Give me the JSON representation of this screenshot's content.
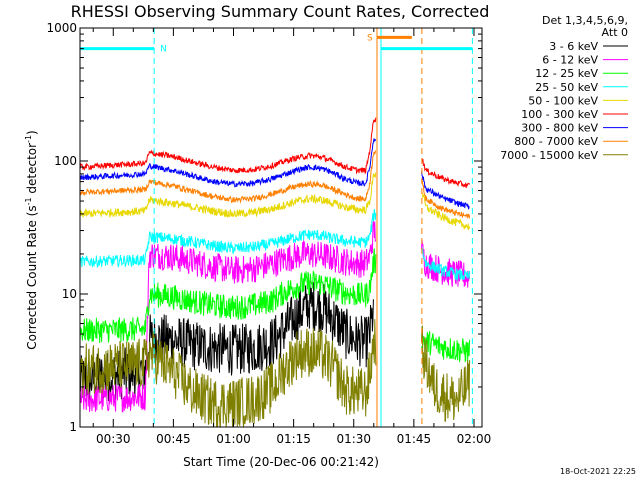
{
  "chart_data": {
    "type": "line",
    "title": "RHESSI Observing Summary Count Rates, Corrected",
    "xlabel": "Start Time (20-Dec-06 00:21:42)",
    "ylabel": "Corrected Count Rate (s",
    "ylabel_sup1": "-1",
    "ylabel_mid": " detector",
    "ylabel_sup2": "-1",
    "ylabel_end": ")",
    "x_ticks": [
      {
        "t": 30,
        "label": "00:30"
      },
      {
        "t": 45,
        "label": "00:45"
      },
      {
        "t": 60,
        "label": "01:00"
      },
      {
        "t": 75,
        "label": "01:15"
      },
      {
        "t": 90,
        "label": "01:30"
      },
      {
        "t": 105,
        "label": "01:45"
      },
      {
        "t": 120,
        "label": "02:00"
      }
    ],
    "xlim": [
      21.7,
      122
    ],
    "ylim": [
      1,
      1000
    ],
    "y_scale": "log",
    "y_ticks": [
      {
        "v": 1,
        "label": "1"
      },
      {
        "v": 10,
        "label": "10"
      },
      {
        "v": 100,
        "label": "100"
      },
      {
        "v": 1000,
        "label": "1000"
      }
    ],
    "legend": {
      "placement": "right",
      "header1": "Det 1,3,4,5,6,9,",
      "header2": "Att 0"
    },
    "series": [
      {
        "name": "3 - 6 keV",
        "color": "#000000",
        "points": [
          [
            21.7,
            2.2
          ],
          [
            38,
            2.7
          ],
          [
            39,
            4.6
          ],
          [
            45,
            4.5
          ],
          [
            50,
            4.1
          ],
          [
            55,
            3.9
          ],
          [
            60,
            3.8
          ],
          [
            65,
            3.9
          ],
          [
            70,
            4.4
          ],
          [
            73,
            5.5
          ],
          [
            76,
            7.0
          ],
          [
            79,
            8.4
          ],
          [
            82,
            8.0
          ],
          [
            85,
            6.5
          ],
          [
            88,
            5.0
          ],
          [
            91,
            4.5
          ],
          [
            93,
            4.3
          ],
          [
            94,
            5.0
          ],
          [
            95,
            8.0
          ]
        ]
      },
      {
        "name": "6 - 12 keV",
        "color": "#ff00ff",
        "points": [
          [
            21.7,
            1.6
          ],
          [
            38,
            1.7
          ],
          [
            39,
            20.0
          ],
          [
            45,
            19.0
          ],
          [
            50,
            17.5
          ],
          [
            55,
            16.0
          ],
          [
            60,
            15.0
          ],
          [
            65,
            15.5
          ],
          [
            70,
            17.0
          ],
          [
            73,
            18.5
          ],
          [
            76,
            19.5
          ],
          [
            79,
            20.0
          ],
          [
            82,
            19.5
          ],
          [
            85,
            18.5
          ],
          [
            88,
            17.5
          ],
          [
            91,
            17.0
          ],
          [
            93,
            17.0
          ],
          [
            94,
            19.0
          ],
          [
            95,
            30.0
          ],
          [
            107,
            21.0
          ],
          [
            108,
            17.0
          ],
          [
            112,
            15.0
          ],
          [
            116,
            14.0
          ],
          [
            119,
            13.5
          ]
        ]
      },
      {
        "name": "12 - 25 keV",
        "color": "#00ff00",
        "points": [
          [
            21.7,
            5.3
          ],
          [
            38,
            5.4
          ],
          [
            39,
            10.0
          ],
          [
            45,
            9.5
          ],
          [
            50,
            8.8
          ],
          [
            55,
            8.2
          ],
          [
            60,
            7.9
          ],
          [
            65,
            8.2
          ],
          [
            70,
            9.0
          ],
          [
            73,
            10.5
          ],
          [
            76,
            11.5
          ],
          [
            79,
            12.2
          ],
          [
            82,
            12.0
          ],
          [
            85,
            11.0
          ],
          [
            88,
            10.2
          ],
          [
            91,
            9.8
          ],
          [
            93,
            9.8
          ],
          [
            94,
            11.0
          ],
          [
            95,
            18.0
          ],
          [
            107,
            4.5
          ],
          [
            112,
            4.0
          ],
          [
            116,
            3.8
          ],
          [
            119,
            3.7
          ]
        ]
      },
      {
        "name": "25 - 50 keV",
        "color": "#00ffff",
        "points": [
          [
            21.7,
            17.5
          ],
          [
            38,
            18.0
          ],
          [
            39,
            27.0
          ],
          [
            45,
            26.0
          ],
          [
            50,
            24.5
          ],
          [
            55,
            23.0
          ],
          [
            60,
            22.0
          ],
          [
            65,
            22.5
          ],
          [
            70,
            24.0
          ],
          [
            73,
            25.5
          ],
          [
            76,
            27.0
          ],
          [
            79,
            28.0
          ],
          [
            82,
            27.5
          ],
          [
            85,
            26.0
          ],
          [
            88,
            25.0
          ],
          [
            91,
            24.5
          ],
          [
            93,
            24.5
          ],
          [
            94,
            27.0
          ],
          [
            95,
            40.0
          ],
          [
            107,
            22.0
          ],
          [
            108,
            17.0
          ],
          [
            112,
            15.0
          ],
          [
            116,
            14.0
          ],
          [
            119,
            13.5
          ]
        ]
      },
      {
        "name": "50 - 100 keV",
        "color": "#e8d800",
        "points": [
          [
            21.7,
            40.0
          ],
          [
            38,
            42.0
          ],
          [
            39,
            51.0
          ],
          [
            45,
            48.0
          ],
          [
            50,
            45.0
          ],
          [
            55,
            42.0
          ],
          [
            60,
            40.0
          ],
          [
            65,
            41.0
          ],
          [
            70,
            44.0
          ],
          [
            73,
            47.0
          ],
          [
            76,
            50.0
          ],
          [
            79,
            52.0
          ],
          [
            82,
            51.0
          ],
          [
            85,
            48.0
          ],
          [
            88,
            45.0
          ],
          [
            91,
            43.0
          ],
          [
            93,
            43.0
          ],
          [
            94,
            50.0
          ],
          [
            95,
            80.0
          ],
          [
            107,
            60.0
          ],
          [
            108,
            45.0
          ],
          [
            112,
            38.0
          ],
          [
            116,
            34.0
          ],
          [
            119,
            32.0
          ]
        ]
      },
      {
        "name": "100 - 300 keV",
        "color": "#ff0000",
        "points": [
          [
            21.7,
            90.0
          ],
          [
            38,
            96.0
          ],
          [
            39,
            115.0
          ],
          [
            45,
            108.0
          ],
          [
            50,
            98.0
          ],
          [
            55,
            90.0
          ],
          [
            60,
            85.0
          ],
          [
            65,
            86.0
          ],
          [
            70,
            93.0
          ],
          [
            73,
            100.0
          ],
          [
            76,
            106.0
          ],
          [
            79,
            110.0
          ],
          [
            82,
            107.0
          ],
          [
            85,
            99.0
          ],
          [
            88,
            90.0
          ],
          [
            91,
            85.0
          ],
          [
            93,
            85.0
          ],
          [
            94,
            120.0
          ],
          [
            95,
            210.0
          ],
          [
            107,
            105.0
          ],
          [
            108,
            85.0
          ],
          [
            112,
            74.0
          ],
          [
            116,
            68.0
          ],
          [
            119,
            65.0
          ]
        ]
      },
      {
        "name": "300 - 800 keV",
        "color": "#0000ff",
        "points": [
          [
            21.7,
            75.0
          ],
          [
            38,
            80.0
          ],
          [
            39,
            92.0
          ],
          [
            45,
            85.0
          ],
          [
            50,
            77.0
          ],
          [
            55,
            70.0
          ],
          [
            60,
            67.0
          ],
          [
            65,
            68.0
          ],
          [
            70,
            74.0
          ],
          [
            73,
            80.0
          ],
          [
            76,
            86.0
          ],
          [
            79,
            90.0
          ],
          [
            82,
            88.0
          ],
          [
            85,
            81.0
          ],
          [
            88,
            73.0
          ],
          [
            91,
            68.0
          ],
          [
            93,
            68.0
          ],
          [
            94,
            90.0
          ],
          [
            95,
            150.0
          ],
          [
            107,
            80.0
          ],
          [
            108,
            62.0
          ],
          [
            112,
            53.0
          ],
          [
            116,
            48.0
          ],
          [
            119,
            45.0
          ]
        ]
      },
      {
        "name": "800 - 7000 keV",
        "color": "#ff8000",
        "points": [
          [
            21.7,
            58.0
          ],
          [
            38,
            61.0
          ],
          [
            39,
            70.0
          ],
          [
            45,
            65.0
          ],
          [
            50,
            59.0
          ],
          [
            55,
            54.0
          ],
          [
            60,
            51.0
          ],
          [
            65,
            52.0
          ],
          [
            70,
            57.0
          ],
          [
            73,
            61.0
          ],
          [
            76,
            65.0
          ],
          [
            79,
            67.0
          ],
          [
            82,
            66.0
          ],
          [
            85,
            61.0
          ],
          [
            88,
            56.0
          ],
          [
            91,
            52.0
          ],
          [
            93,
            52.0
          ],
          [
            94,
            68.0
          ],
          [
            95,
            120.0
          ],
          [
            107,
            70.0
          ],
          [
            108,
            52.0
          ],
          [
            112,
            44.0
          ],
          [
            116,
            40.0
          ],
          [
            119,
            38.0
          ]
        ]
      },
      {
        "name": "7000 - 15000 keV",
        "color": "#808000",
        "points": [
          [
            21.7,
            2.7
          ],
          [
            38,
            3.0
          ],
          [
            39,
            3.6
          ],
          [
            45,
            2.6
          ],
          [
            50,
            1.8
          ],
          [
            55,
            1.5
          ],
          [
            60,
            1.5
          ],
          [
            65,
            1.6
          ],
          [
            70,
            2.0
          ],
          [
            73,
            2.8
          ],
          [
            76,
            3.6
          ],
          [
            79,
            3.7
          ],
          [
            82,
            3.5
          ],
          [
            85,
            2.8
          ],
          [
            88,
            1.9
          ],
          [
            91,
            1.8
          ],
          [
            93,
            1.8
          ],
          [
            94,
            2.5
          ],
          [
            95,
            4.5
          ],
          [
            107,
            3.8
          ],
          [
            110,
            2.0
          ],
          [
            113,
            1.7
          ],
          [
            116,
            1.6
          ],
          [
            119,
            2.2
          ]
        ]
      }
    ],
    "annotations": [
      {
        "label": "N",
        "color": "#00ffff",
        "t_start": 21.7,
        "t_end": 40.2,
        "y": 700,
        "kind": "bar"
      },
      {
        "label": "S",
        "color": "#ff8000",
        "t_start": 95.8,
        "t_end": 104.5,
        "y": 850,
        "kind": "bar"
      },
      {
        "label": "",
        "color": "#00ffff",
        "t_start": 96.8,
        "t_end": 119.6,
        "y": 700,
        "kind": "bar"
      }
    ],
    "markers": [
      {
        "t": 40.2,
        "color": "#00ffff",
        "style": "dashed"
      },
      {
        "t": 95.8,
        "color": "#ff8000",
        "style": "solid"
      },
      {
        "t": 96.8,
        "color": "#00ffff",
        "style": "solid"
      },
      {
        "t": 107.0,
        "color": "#ff8000",
        "style": "dashed"
      },
      {
        "t": 119.6,
        "color": "#00ffff",
        "style": "dashed"
      }
    ],
    "footer_timestamp": "18-Oct-2021 22:25"
  }
}
